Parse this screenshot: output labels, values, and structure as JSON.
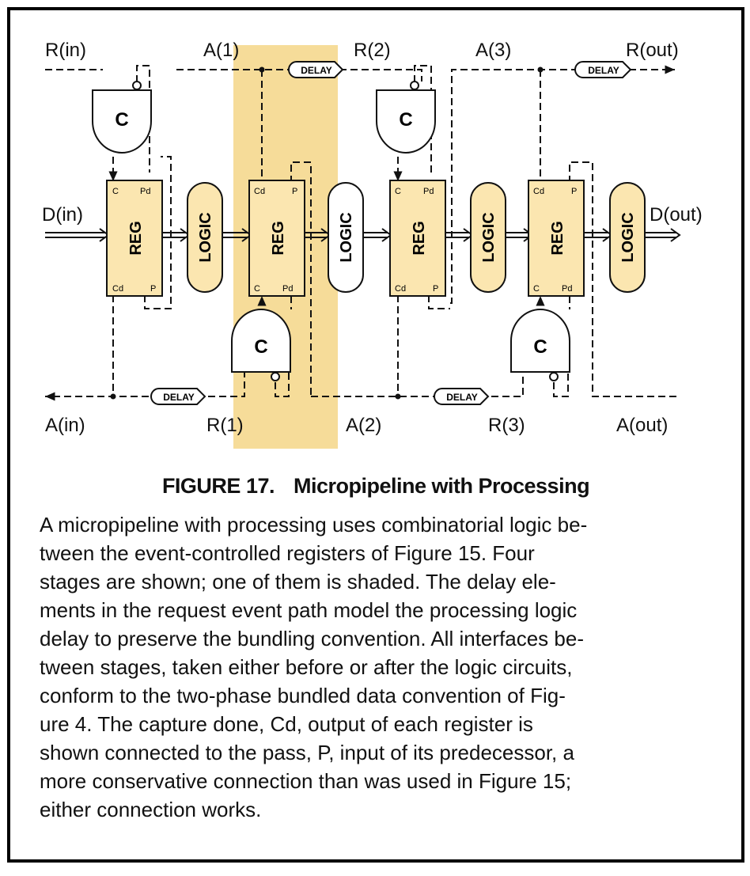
{
  "figure": {
    "signals": {
      "r_in": "R(in)",
      "a1": "A(1)",
      "r2": "R(2)",
      "a3": "A(3)",
      "r_out": "R(out)",
      "d_in": "D(in)",
      "d_out": "D(out)",
      "a_in": "A(in)",
      "r1": "R(1)",
      "a2": "A(2)",
      "r3": "R(3)",
      "a_out": "A(out)"
    },
    "delay_label": "DELAY",
    "c_element_label": "C",
    "register_label": "REG",
    "logic_label": "LOGIC",
    "pins": {
      "c": "C",
      "pd": "Pd",
      "cd": "Cd",
      "p": "P"
    },
    "colors": {
      "shaded_stage": "#f6dc99",
      "register_fill": "#fbe6b0",
      "line": "#111111"
    }
  },
  "caption": {
    "number": "FIGURE 17.",
    "title": "Micropipeline with Processing",
    "lines": [
      "A micropipeline with processing uses combinatorial logic be-",
      "tween the event-controlled registers of Figure 15. Four",
      "stages are shown; one of them is shaded. The delay ele-",
      "ments in the request event path model the processing logic",
      "delay to preserve the bundling convention. All interfaces be-",
      "tween stages, taken either before or after the logic circuits,",
      "conform to the two-phase bundled data convention of Fig-",
      "ure 4. The capture done, Cd, output of each register is",
      "shown connected to the pass, P, input of its predecessor, a",
      "more conservative connection than was used in Figure 15;",
      "either connection works."
    ]
  }
}
